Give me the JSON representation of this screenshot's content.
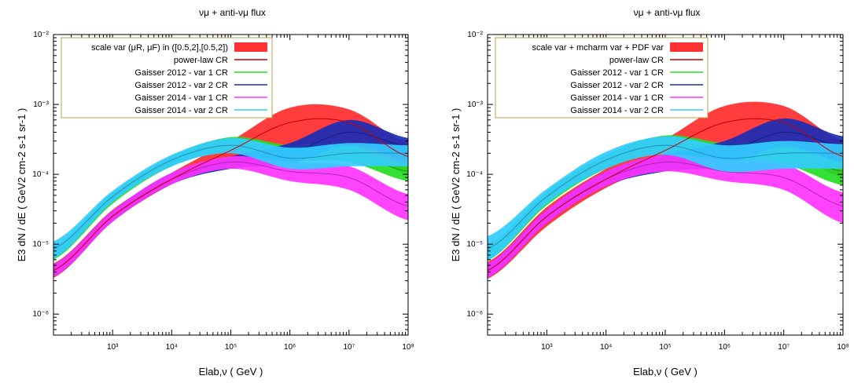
{
  "chart_data": [
    {
      "type": "area",
      "title": "νμ + anti-νμ  flux",
      "xlabel": "Elab,ν   ( GeV )",
      "ylabel": "E3  dN / dE   ( GeV2 cm-2 s-1 sr-1 )",
      "xscale": "log",
      "yscale": "log",
      "xlim": [
        100,
        100000000
      ],
      "ylim": [
        5e-07,
        0.01
      ],
      "x_ticks": [
        "10^3",
        "10^4",
        "10^5",
        "10^6",
        "10^7",
        "10^8"
      ],
      "y_ticks": [
        "10^-6",
        "10^-5",
        "10^-4",
        "10^-3",
        "10^-2"
      ],
      "legend_position": "top-left",
      "x": [
        100,
        1000,
        10000,
        100000,
        1000000,
        10000000,
        100000000
      ],
      "series": [
        {
          "name": "scale var (μR, μF)  in ([0.5,2],[0.5,2])",
          "kind": "band",
          "color": "#ff3333",
          "central": [
            4.2e-06,
            2.5e-05,
            8.5e-05,
            0.00022,
            0.00055,
            0.00055,
            0.00018
          ],
          "low": [
            3.3e-06,
            2.1e-05,
            7.2e-05,
            0.00016,
            0.00025,
            0.00025,
            0.0001
          ],
          "high": [
            5.3e-06,
            3.1e-05,
            0.000105,
            0.0003,
            0.0009,
            0.00085,
            0.00028
          ]
        },
        {
          "name": "power-law CR",
          "kind": "line",
          "color": "#cc0000",
          "values": [
            4.2e-06,
            2.5e-05,
            8.5e-05,
            0.00022,
            0.00055,
            0.00055,
            0.00018
          ]
        },
        {
          "name": "Gaisser 2012 - var 1 CR",
          "kind": "band",
          "color": "#22dd22",
          "central": [
            7.5e-06,
            4.5e-05,
            0.00015,
            0.00027,
            0.0002,
            0.0002,
            0.00011
          ],
          "low": [
            6e-06,
            3.8e-05,
            0.00013,
            0.00022,
            0.00016,
            0.00015,
            8e-05
          ],
          "high": [
            9.3e-06,
            5.4e-05,
            0.00018,
            0.00034,
            0.00026,
            0.00026,
            0.00014
          ]
        },
        {
          "name": "Gaisser 2012 - var 2 CR",
          "kind": "band",
          "color": "#1a2db5",
          "central": [
            4.2e-06,
            2.5e-05,
            8.5e-05,
            0.00015,
            0.0002,
            0.0004,
            0.00025
          ],
          "low": [
            3.4e-06,
            2.1e-05,
            7.2e-05,
            0.00012,
            0.00014,
            0.00026,
            0.00016
          ],
          "high": [
            5.1e-06,
            3e-05,
            0.000105,
            0.00018,
            0.00028,
            0.0006,
            0.00033
          ]
        },
        {
          "name": "Gaisser 2014 - var 1 CR",
          "kind": "band",
          "color": "#ff33ff",
          "central": [
            4.2e-06,
            2.5e-05,
            8.5e-05,
            0.00015,
            0.00011,
            9e-05,
            3.5e-05
          ],
          "low": [
            3.4e-06,
            2.1e-05,
            7.2e-05,
            0.00012,
            8e-05,
            6e-05,
            2.2e-05
          ],
          "high": [
            5.1e-06,
            3e-05,
            0.000105,
            0.00018,
            0.00015,
            0.00013,
            5.2e-05
          ]
        },
        {
          "name": "Gaisser 2014 - var 2 CR",
          "kind": "band",
          "color": "#33ccff",
          "central": [
            8.5e-06,
            4.8e-05,
            0.00016,
            0.00026,
            0.00017,
            0.0002,
            0.0002
          ],
          "low": [
            6.2e-06,
            4e-05,
            0.00013,
            0.0002,
            0.00012,
            0.00013,
            0.00013
          ],
          "high": [
            1.1e-05,
            5.8e-05,
            0.00019,
            0.00033,
            0.00024,
            0.00028,
            0.00026
          ]
        }
      ]
    },
    {
      "type": "area",
      "title": "νμ + anti-νμ  flux",
      "xlabel": "Elab,ν   ( GeV )",
      "ylabel": "E3  dN / dE   ( GeV2 cm-2 s-1 sr-1 )",
      "xscale": "log",
      "yscale": "log",
      "xlim": [
        100,
        100000000
      ],
      "ylim": [
        5e-07,
        0.01
      ],
      "x_ticks": [
        "10^3",
        "10^4",
        "10^5",
        "10^6",
        "10^7",
        "10^8"
      ],
      "y_ticks": [
        "10^-6",
        "10^-5",
        "10^-4",
        "10^-3",
        "10^-2"
      ],
      "legend_position": "top-left",
      "x": [
        100,
        1000,
        10000,
        100000,
        1000000,
        10000000,
        100000000
      ],
      "series": [
        {
          "name": "scale var + mcharm var + PDF var",
          "kind": "band",
          "color": "#ff3333",
          "central": [
            4.2e-06,
            2.5e-05,
            8.5e-05,
            0.00022,
            0.00055,
            0.00055,
            0.00018
          ],
          "low": [
            3.2e-06,
            1.8e-05,
            6.4e-05,
            0.00014,
            0.00022,
            0.00022,
            9e-05
          ],
          "high": [
            5.6e-06,
            3.4e-05,
            0.00012,
            0.00032,
            0.00095,
            0.00095,
            0.0003
          ]
        },
        {
          "name": "power-law CR",
          "kind": "line",
          "color": "#cc0000",
          "values": [
            4.2e-06,
            2.5e-05,
            8.5e-05,
            0.00022,
            0.00055,
            0.00055,
            0.00018
          ]
        },
        {
          "name": "Gaisser 2012 - var 1 CR",
          "kind": "band",
          "color": "#22dd22",
          "central": [
            7.5e-06,
            4.5e-05,
            0.00015,
            0.00027,
            0.0002,
            0.0002,
            0.00011
          ],
          "low": [
            5.8e-06,
            3.6e-05,
            0.00012,
            0.00021,
            0.00015,
            0.00014,
            7e-05
          ],
          "high": [
            9.8e-06,
            5.7e-05,
            0.00019,
            0.00036,
            0.00028,
            0.00028,
            0.00015
          ]
        },
        {
          "name": "Gaisser 2012 - var 2 CR",
          "kind": "band",
          "color": "#1a2db5",
          "central": [
            4.2e-06,
            2.5e-05,
            8.5e-05,
            0.00015,
            0.0002,
            0.0004,
            0.00025
          ],
          "low": [
            3.3e-06,
            2e-05,
            6.8e-05,
            0.00011,
            0.00013,
            0.00025,
            0.00015
          ],
          "high": [
            5.3e-06,
            3.1e-05,
            0.00011,
            0.00019,
            0.0003,
            0.00063,
            0.00035
          ]
        },
        {
          "name": "Gaisser 2014 - var 1 CR",
          "kind": "band",
          "color": "#ff33ff",
          "central": [
            4.2e-06,
            2.5e-05,
            8.5e-05,
            0.00015,
            0.00011,
            9e-05,
            3.5e-05
          ],
          "low": [
            3.3e-06,
            2e-05,
            6.8e-05,
            0.00011,
            8e-05,
            6e-05,
            2e-05
          ],
          "high": [
            5.3e-06,
            3.1e-05,
            0.00011,
            0.00019,
            0.00016,
            0.00014,
            5.5e-05
          ]
        },
        {
          "name": "Gaisser 2014 - var 2 CR",
          "kind": "band",
          "color": "#33ccff",
          "central": [
            8.5e-06,
            4.8e-05,
            0.00016,
            0.00026,
            0.00017,
            0.0002,
            0.0002
          ],
          "low": [
            5.8e-06,
            3.8e-05,
            0.00012,
            0.00019,
            0.00011,
            0.00012,
            0.00012
          ],
          "high": [
            1.3e-05,
            6.2e-05,
            0.00021,
            0.00035,
            0.00026,
            0.0003,
            0.00027
          ]
        }
      ]
    }
  ]
}
